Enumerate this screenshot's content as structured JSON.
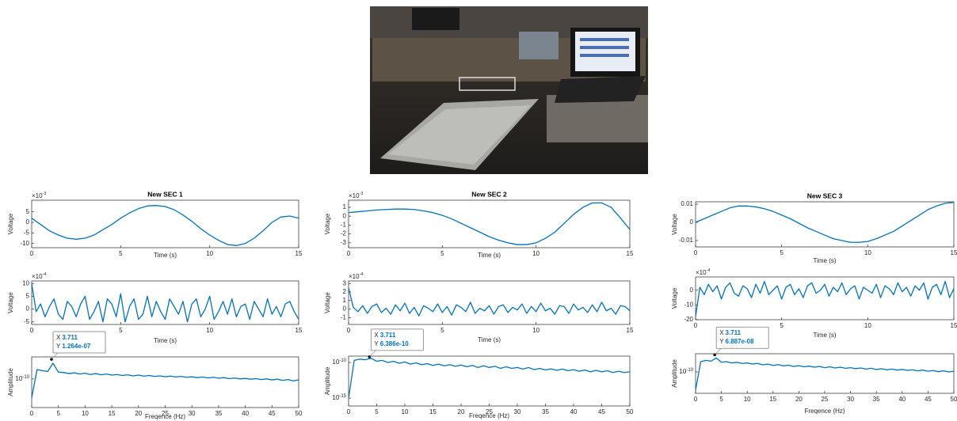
{
  "chart_data": [
    {
      "type": "line",
      "title": "New SEC 1",
      "xlabel": "Time (s)",
      "ylabel": "Voltage",
      "color": "#0072bd",
      "y_multiplier": {
        "base": "×10",
        "exponent": "-3"
      },
      "x": [
        0,
        0.5,
        1,
        1.5,
        2,
        2.5,
        3,
        3.5,
        4,
        4.5,
        5,
        5.5,
        6,
        6.5,
        7,
        7.5,
        8,
        8.5,
        9,
        9.5,
        10,
        10.5,
        11,
        11.5,
        12,
        12.5,
        13,
        13.5,
        14,
        14.5,
        15
      ],
      "values": [
        2,
        -1,
        -4,
        -6,
        -7.5,
        -8,
        -7.5,
        -6,
        -3.5,
        -1,
        2,
        4.5,
        6.5,
        7.8,
        8,
        7.5,
        6,
        3.5,
        0.5,
        -3,
        -6,
        -8.5,
        -10.5,
        -11,
        -10,
        -7.5,
        -4,
        0,
        2.5,
        3,
        2
      ],
      "xlim": [
        0,
        15
      ],
      "xticks": [
        0,
        5,
        10,
        15
      ],
      "ylim": [
        -12,
        10.5
      ],
      "yticks": [
        5,
        0,
        -5,
        -10
      ]
    },
    {
      "type": "line",
      "xlabel": "Time (s)",
      "ylabel": "Voltage",
      "color": "#0072bd",
      "y_multiplier": {
        "base": "×10",
        "exponent": "-4"
      },
      "x": [
        0,
        0.25,
        0.5,
        0.75,
        1,
        1.25,
        1.5,
        1.75,
        2,
        2.25,
        2.5,
        2.75,
        3,
        3.25,
        3.5,
        3.75,
        4,
        4.25,
        4.5,
        4.75,
        5,
        5.25,
        5.5,
        5.75,
        6,
        6.25,
        6.5,
        6.75,
        7,
        7.25,
        7.5,
        7.75,
        8,
        8.25,
        8.5,
        8.75,
        9,
        9.25,
        9.5,
        9.75,
        10,
        10.25,
        10.5,
        10.75,
        11,
        11.25,
        11.5,
        11.75,
        12,
        12.25,
        12.5,
        12.75,
        13,
        13.25,
        13.5,
        13.75,
        14,
        14.25,
        14.5,
        14.75,
        15
      ],
      "values": [
        10,
        -1,
        2,
        -3,
        1,
        4,
        -2,
        -4,
        3,
        1,
        -3,
        2,
        5,
        -4,
        -1,
        3,
        -5,
        4,
        2,
        -3,
        6,
        -5,
        1,
        4,
        -4,
        -2,
        5,
        -3,
        3,
        -1,
        -4,
        4,
        1,
        -2,
        3,
        -5,
        2,
        4,
        -3,
        0,
        5,
        -4,
        -1,
        3,
        -2,
        4,
        -3,
        1,
        2,
        -4,
        3,
        0,
        -3,
        4,
        -2,
        1,
        -3,
        2,
        3,
        -1,
        -4
      ],
      "xlim": [
        0,
        15
      ],
      "xticks": [
        0,
        5,
        10,
        15
      ],
      "ylim": [
        -6,
        11
      ],
      "yticks": [
        10,
        5,
        0,
        -5
      ]
    },
    {
      "type": "line",
      "xlabel": "Freqence (Hz)",
      "ylabel": "Amplitude",
      "color": "#0072bd",
      "ylog": true,
      "x": [
        0,
        1,
        2,
        3,
        4,
        5,
        6,
        7,
        8,
        9,
        10,
        11,
        12,
        13,
        14,
        15,
        16,
        17,
        18,
        19,
        20,
        21,
        22,
        23,
        24,
        25,
        26,
        27,
        28,
        29,
        30,
        31,
        32,
        33,
        34,
        35,
        36,
        37,
        38,
        39,
        40,
        41,
        42,
        43,
        44,
        45,
        46,
        47,
        48,
        49,
        50
      ],
      "values": [
        1e-13,
        3e-09,
        2e-09,
        1.5e-09,
        3e-08,
        1.2e-09,
        1e-09,
        7e-10,
        9e-10,
        6e-10,
        8e-10,
        5e-10,
        7e-10,
        4.5e-10,
        6e-10,
        4e-10,
        5e-10,
        3.5e-10,
        4.5e-10,
        3e-10,
        4e-10,
        2.8e-10,
        3.5e-10,
        2.5e-10,
        3e-10,
        2.2e-10,
        2.8e-10,
        2e-10,
        2.5e-10,
        1.8e-10,
        2.2e-10,
        1.6e-10,
        2e-10,
        1.4e-10,
        1.8e-10,
        1.3e-10,
        1.6e-10,
        1.1e-10,
        1.4e-10,
        1e-10,
        1.2e-10,
        9e-11,
        1.1e-10,
        8e-11,
        1e-10,
        7e-11,
        9e-11,
        6e-11,
        8e-11,
        5e-11,
        7e-11
      ],
      "xlim": [
        0,
        50
      ],
      "xticks": [
        0,
        5,
        10,
        15,
        20,
        25,
        30,
        35,
        40,
        45,
        50
      ],
      "ylim": [
        3e-15,
        3e-07
      ],
      "yticks": [
        {
          "value": 1e-10,
          "label": "10",
          "exponent": "-10"
        }
      ],
      "datatip": {
        "x_prefix": "X",
        "x": 3.711,
        "y_prefix": "Y",
        "y": {
          "value": 1.264e-07,
          "label": "1.264e-07"
        }
      }
    },
    {
      "type": "line",
      "title": "New SEC 2",
      "xlabel": "Time (s)",
      "ylabel": "Voltage",
      "color": "#0072bd",
      "y_multiplier": {
        "base": "×10",
        "exponent": "-3"
      },
      "x": [
        0,
        0.5,
        1,
        1.5,
        2,
        2.5,
        3,
        3.5,
        4,
        4.5,
        5,
        5.5,
        6,
        6.5,
        7,
        7.5,
        8,
        8.5,
        9,
        9.5,
        10,
        10.5,
        11,
        11.5,
        12,
        12.5,
        13,
        13.5,
        14,
        14.5,
        15
      ],
      "values": [
        0.4,
        0.5,
        0.6,
        0.7,
        0.75,
        0.8,
        0.8,
        0.75,
        0.6,
        0.4,
        0.1,
        -0.3,
        -0.8,
        -1.3,
        -1.8,
        -2.3,
        -2.7,
        -3,
        -3.2,
        -3.2,
        -3,
        -2.5,
        -1.8,
        -0.8,
        0.2,
        1,
        1.5,
        1.5,
        1,
        -0.2,
        -1.5
      ],
      "xlim": [
        0,
        15
      ],
      "xticks": [
        0,
        5,
        10,
        15
      ],
      "ylim": [
        -3.55,
        1.8
      ],
      "yticks": [
        1,
        0,
        -1,
        -2,
        -3
      ]
    },
    {
      "type": "line",
      "xlabel": "Time (s)",
      "ylabel": "Voltage",
      "color": "#0072bd",
      "y_multiplier": {
        "base": "×10",
        "exponent": "-4"
      },
      "x": [
        0,
        0.25,
        0.5,
        0.75,
        1,
        1.25,
        1.5,
        1.75,
        2,
        2.25,
        2.5,
        2.75,
        3,
        3.25,
        3.5,
        3.75,
        4,
        4.25,
        4.5,
        4.75,
        5,
        5.25,
        5.5,
        5.75,
        6,
        6.25,
        6.5,
        6.75,
        7,
        7.25,
        7.5,
        7.75,
        8,
        8.25,
        8.5,
        8.75,
        9,
        9.25,
        9.5,
        9.75,
        10,
        10.25,
        10.5,
        10.75,
        11,
        11.25,
        11.5,
        11.75,
        12,
        12.25,
        12.5,
        12.75,
        13,
        13.25,
        13.5,
        13.75,
        14,
        14.25,
        14.5,
        14.75,
        15
      ],
      "values": [
        2.5,
        0.2,
        -0.3,
        0.4,
        -0.5,
        0.3,
        0.6,
        -0.4,
        0.1,
        -0.6,
        0.5,
        -0.2,
        0.7,
        -0.5,
        0.2,
        -0.8,
        0.4,
        0.1,
        -0.3,
        0.6,
        -0.4,
        0.3,
        -0.7,
        0.5,
        0.2,
        -0.3,
        0.8,
        -0.5,
        0.1,
        -0.2,
        0.4,
        -0.6,
        0.3,
        0.5,
        -0.4,
        0.2,
        -0.1,
        0.6,
        -0.5,
        0.3,
        -0.3,
        0.7,
        -0.2,
        0.1,
        -0.6,
        0.4,
        0.3,
        -0.5,
        0.6,
        -0.1,
        0.2,
        -0.4,
        0.5,
        -0.3,
        0.8,
        -0.2,
        0.1,
        -0.6,
        0.4,
        0.3,
        -0.2
      ],
      "xlim": [
        0,
        15
      ],
      "xticks": [
        0,
        5,
        10,
        15
      ],
      "ylim": [
        -1.8,
        3.3
      ],
      "yticks": [
        3,
        2,
        1,
        0,
        -1
      ]
    },
    {
      "type": "line",
      "xlabel": "Freqence (Hz)",
      "ylabel": "Amplitude",
      "color": "#0072bd",
      "ylog": true,
      "x": [
        0,
        1,
        2,
        3,
        4,
        5,
        6,
        7,
        8,
        9,
        10,
        11,
        12,
        13,
        14,
        15,
        16,
        17,
        18,
        19,
        20,
        21,
        22,
        23,
        24,
        25,
        26,
        27,
        28,
        29,
        30,
        31,
        32,
        33,
        34,
        35,
        36,
        37,
        38,
        39,
        40,
        41,
        42,
        43,
        44,
        45,
        46,
        47,
        48,
        49,
        50
      ],
      "values": [
        1e-15,
        2e-10,
        3e-10,
        2.5e-10,
        4e-10,
        1.5e-10,
        2e-10,
        1e-10,
        1.5e-10,
        8e-11,
        1.2e-10,
        6e-11,
        9e-11,
        5e-11,
        7e-11,
        4e-11,
        6e-11,
        3.5e-11,
        5e-11,
        3e-11,
        4.5e-11,
        2.5e-11,
        4e-11,
        2e-11,
        3.5e-11,
        2e-11,
        3e-11,
        1.5e-11,
        2.5e-11,
        1.5e-11,
        2e-11,
        1.2e-11,
        2e-11,
        1e-11,
        1.5e-11,
        9e-12,
        1.3e-11,
        8e-12,
        1.2e-11,
        7e-12,
        1e-11,
        6e-12,
        9e-12,
        5e-12,
        8e-12,
        5e-12,
        7e-12,
        4e-12,
        6e-12,
        4e-12,
        5e-12
      ],
      "xlim": [
        0,
        50
      ],
      "xticks": [
        0,
        5,
        10,
        15,
        20,
        25,
        30,
        35,
        40,
        45,
        50
      ],
      "ylim": [
        8e-17,
        8e-10
      ],
      "yticks": [
        {
          "value": 1e-10,
          "label": "10",
          "exponent": "-10"
        },
        {
          "value": 1e-15,
          "label": "10",
          "exponent": "-15"
        }
      ],
      "datatip": {
        "x_prefix": "X",
        "x": 3.711,
        "y_prefix": "Y",
        "y": {
          "value": 6.386e-10,
          "label": "6.386e-10"
        }
      }
    },
    {
      "type": "line",
      "title": "New SEC 3",
      "xlabel": "Time (s)",
      "ylabel": "Voltage",
      "color": "#0072bd",
      "x": [
        0,
        0.5,
        1,
        1.5,
        2,
        2.5,
        3,
        3.5,
        4,
        4.5,
        5,
        5.5,
        6,
        6.5,
        7,
        7.5,
        8,
        8.5,
        9,
        9.5,
        10,
        10.5,
        11,
        11.5,
        12,
        12.5,
        13,
        13.5,
        14,
        14.5,
        15
      ],
      "values": [
        0,
        0.002,
        0.004,
        0.006,
        0.008,
        0.009,
        0.009,
        0.0085,
        0.0075,
        0.006,
        0.004,
        0.002,
        -0.0005,
        -0.003,
        -0.005,
        -0.007,
        -0.009,
        -0.01,
        -0.011,
        -0.011,
        -0.0105,
        -0.009,
        -0.007,
        -0.005,
        -0.002,
        0.001,
        0.004,
        0.007,
        0.009,
        0.0105,
        0.011
      ],
      "xlim": [
        0,
        15
      ],
      "xticks": [
        0,
        5,
        10,
        15
      ],
      "ylim": [
        -0.0135,
        0.0113
      ],
      "yticks": [
        0.01,
        0,
        -0.01
      ]
    },
    {
      "type": "line",
      "xlabel": "Time (s)",
      "ylabel": "Voltage",
      "color": "#0072bd",
      "y_multiplier": {
        "base": "×10",
        "exponent": "-4"
      },
      "x": [
        0,
        0.25,
        0.5,
        0.75,
        1,
        1.25,
        1.5,
        1.75,
        2,
        2.25,
        2.5,
        2.75,
        3,
        3.25,
        3.5,
        3.75,
        4,
        4.25,
        4.5,
        4.75,
        5,
        5.25,
        5.5,
        5.75,
        6,
        6.25,
        6.5,
        6.75,
        7,
        7.25,
        7.5,
        7.75,
        8,
        8.25,
        8.5,
        8.75,
        9,
        9.25,
        9.5,
        9.75,
        10,
        10.25,
        10.5,
        10.75,
        11,
        11.25,
        11.5,
        11.75,
        12,
        12.25,
        12.5,
        12.75,
        13,
        13.25,
        13.5,
        13.75,
        14,
        14.25,
        14.5,
        14.75,
        15
      ],
      "values": [
        -18,
        2,
        -3,
        4,
        -1,
        3,
        -6,
        2,
        5,
        -2,
        -4,
        3,
        1,
        -5,
        4,
        -2,
        6,
        -3,
        0,
        3,
        -6,
        2,
        4,
        -3,
        1,
        -5,
        3,
        5,
        -2,
        0,
        4,
        -4,
        2,
        -1,
        5,
        -3,
        1,
        3,
        -6,
        2,
        0,
        -2,
        4,
        -5,
        3,
        1,
        -3,
        5,
        -1,
        2,
        -4,
        3,
        0,
        5,
        -6,
        2,
        4,
        -3,
        6,
        -5,
        1
      ],
      "xlim": [
        0,
        15
      ],
      "xticks": [
        0,
        5,
        10,
        15
      ],
      "ylim": [
        -20,
        9
      ],
      "yticks": [
        0,
        -10,
        -20
      ]
    },
    {
      "type": "line",
      "xlabel": "Freqence (Hz)",
      "ylabel": "Amplitude",
      "color": "#0072bd",
      "ylog": true,
      "x": [
        0,
        1,
        2,
        3,
        4,
        5,
        6,
        7,
        8,
        9,
        10,
        11,
        12,
        13,
        14,
        15,
        16,
        17,
        18,
        19,
        20,
        21,
        22,
        23,
        24,
        25,
        26,
        27,
        28,
        29,
        30,
        31,
        32,
        33,
        34,
        35,
        36,
        37,
        38,
        39,
        40,
        41,
        42,
        43,
        44,
        45,
        46,
        47,
        48,
        49,
        50
      ],
      "values": [
        1e-13,
        5e-09,
        8e-09,
        6e-09,
        2e-08,
        4e-09,
        5e-09,
        3e-09,
        4e-09,
        2.5e-09,
        3e-09,
        2e-09,
        2.5e-09,
        1.5e-09,
        2e-09,
        1.2e-09,
        1.6e-09,
        1e-09,
        1.3e-09,
        8e-10,
        1.1e-09,
        7e-10,
        9e-10,
        6e-10,
        8e-10,
        5e-10,
        7e-10,
        4.5e-10,
        6e-10,
        4e-10,
        5e-10,
        3.5e-10,
        4.5e-10,
        3e-10,
        4e-10,
        2.5e-10,
        3.5e-10,
        2.2e-10,
        3e-10,
        2e-10,
        2.6e-10,
        1.8e-10,
        2.2e-10,
        1.5e-10,
        2e-10,
        1.3e-10,
        1.7e-10,
        1.1e-10,
        1.5e-10,
        1e-10,
        1.3e-10
      ],
      "xlim": [
        0,
        50
      ],
      "xticks": [
        0,
        5,
        10,
        15,
        20,
        25,
        30,
        35,
        40,
        45,
        50
      ],
      "ylim": [
        3e-14,
        1e-07
      ],
      "yticks": [
        {
          "value": 1e-10,
          "label": "10",
          "exponent": "-10"
        }
      ],
      "datatip": {
        "x_prefix": "X",
        "x": 3.711,
        "y_prefix": "Y",
        "y": {
          "value": 6.887e-08,
          "label": "6.887e-08"
        }
      }
    }
  ]
}
